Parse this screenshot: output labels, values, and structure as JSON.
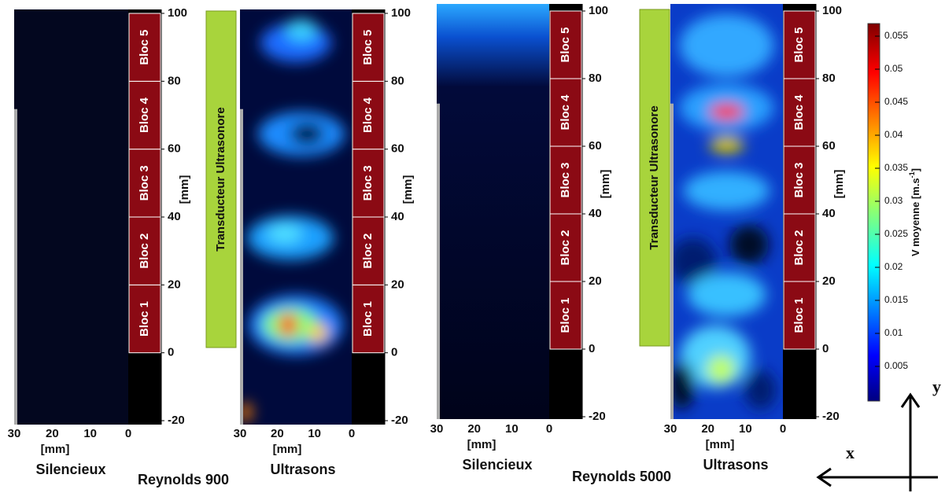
{
  "panels": [
    {
      "caption": "Silencieux",
      "x_label": "[mm]",
      "x_ticks": [
        30,
        20,
        10,
        0
      ],
      "y_label": "[mm]",
      "y_ticks": [
        100,
        80,
        60,
        40,
        20,
        0,
        -20
      ],
      "blocks": [
        "Bloc 1",
        "Bloc 2",
        "Bloc 3",
        "Bloc 4",
        "Bloc 5"
      ]
    },
    {
      "caption": "Ultrasons",
      "x_label": "[mm]",
      "x_ticks": [
        30,
        20,
        10,
        0
      ],
      "y_label": "[mm]",
      "y_ticks": [
        100,
        80,
        60,
        40,
        20,
        0,
        -20
      ],
      "blocks": [
        "Bloc 1",
        "Bloc 2",
        "Bloc 3",
        "Bloc 4",
        "Bloc 5"
      ],
      "transducer": "Transducteur Ultrasonore"
    },
    {
      "caption": "Silencieux",
      "x_label": "[mm]",
      "x_ticks": [
        30,
        20,
        10,
        0
      ],
      "y_label": "[mm]",
      "y_ticks": [
        100,
        80,
        60,
        40,
        20,
        0,
        -20
      ],
      "blocks": [
        "Bloc 1",
        "Bloc 2",
        "Bloc 3",
        "Bloc 4",
        "Bloc 5"
      ]
    },
    {
      "caption": "Ultrasons",
      "x_label": "[mm]",
      "x_ticks": [
        30,
        20,
        10,
        0
      ],
      "y_label": "[mm]",
      "y_ticks": [
        100,
        80,
        60,
        40,
        20,
        0,
        -20
      ],
      "blocks": [
        "Bloc 1",
        "Bloc 2",
        "Bloc 3",
        "Bloc 4",
        "Bloc 5"
      ],
      "transducer": "Transducteur Ultrasonore"
    }
  ],
  "groups": [
    "Reynolds 900",
    "Reynolds 5000"
  ],
  "colorbar": {
    "label": "V moyenne [m.s",
    "label_sup": "-1",
    "label_end": "]",
    "ticks": [
      0.005,
      0.01,
      0.015,
      0.02,
      0.025,
      0.03,
      0.035,
      0.04,
      0.045,
      0.05,
      0.055
    ]
  },
  "axes": {
    "x": "x",
    "y": "y"
  }
}
